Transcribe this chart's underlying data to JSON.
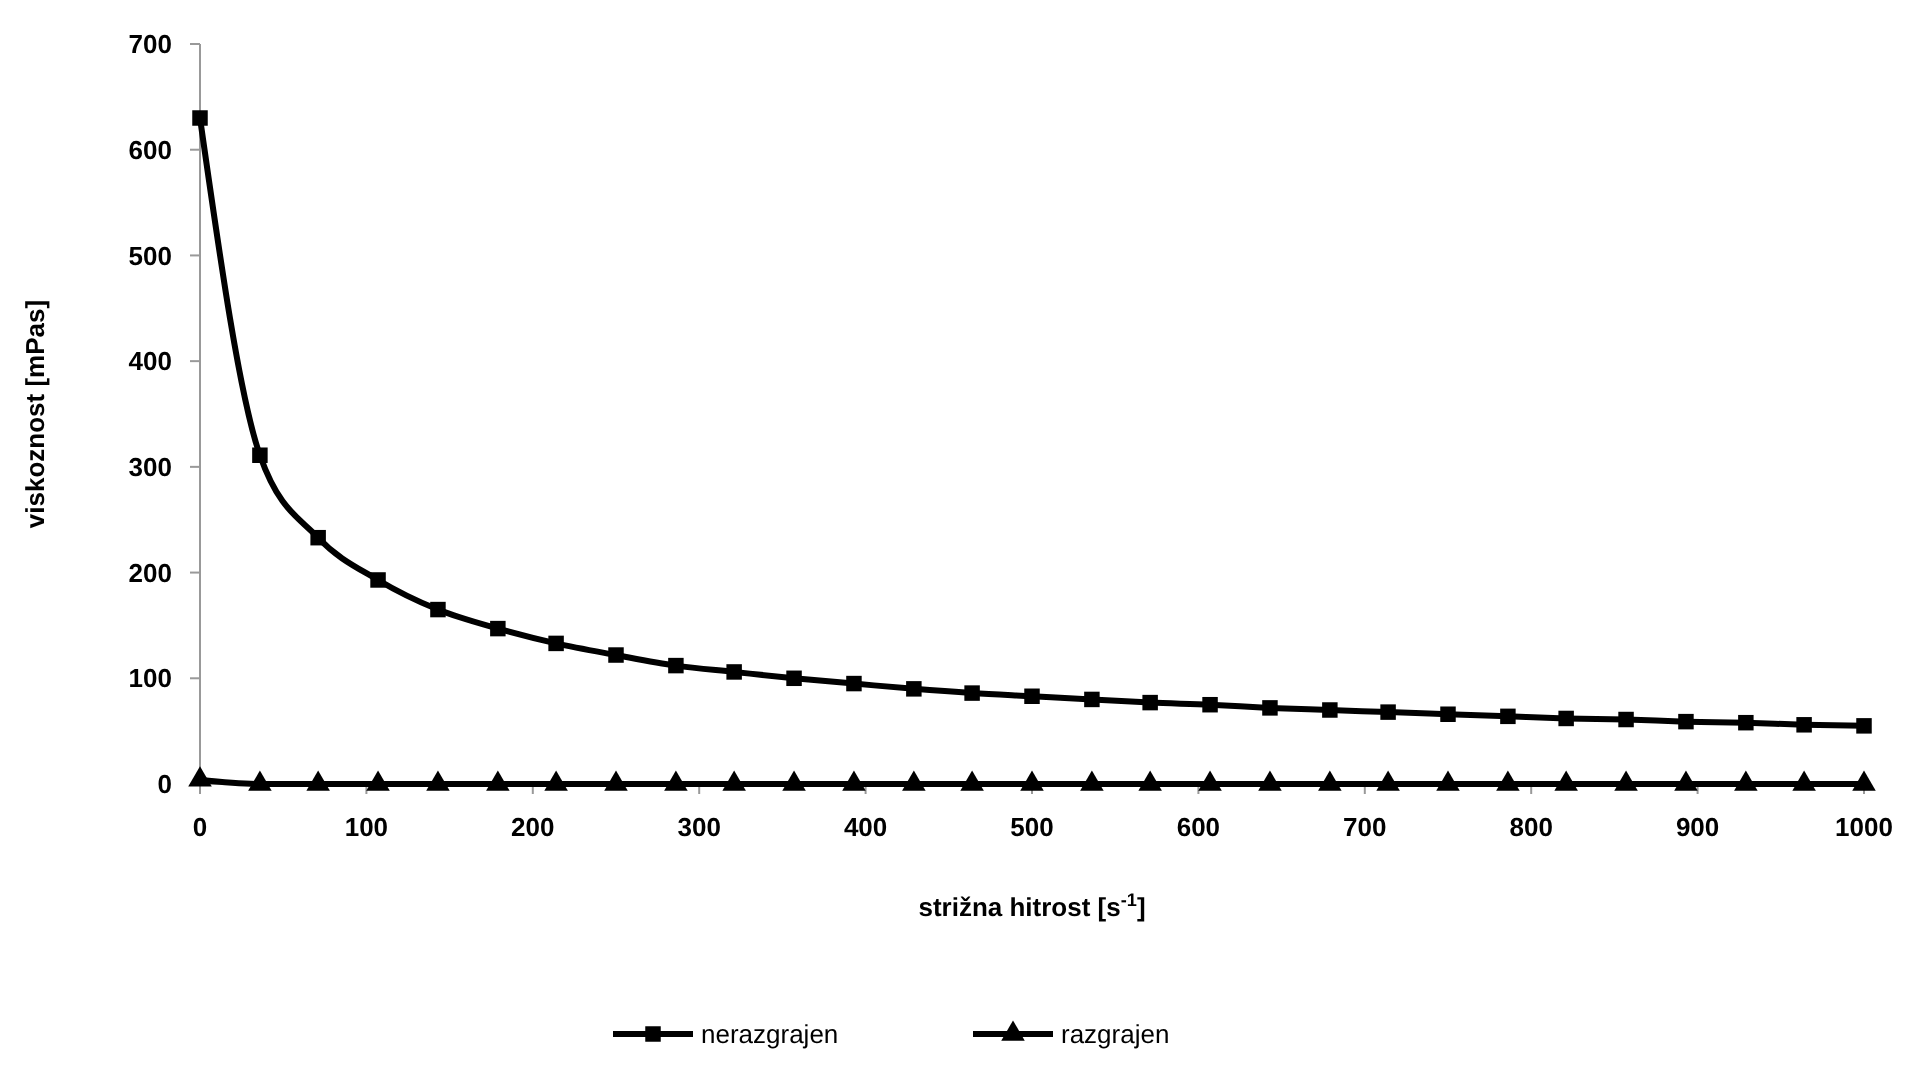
{
  "chart_data": {
    "type": "line",
    "xlabel": "strižna hitrost [s$^{-1}$]",
    "ylabel": "viskoznost [mPas]",
    "x": [
      0,
      36,
      71,
      107,
      143,
      179,
      214,
      250,
      286,
      321,
      357,
      393,
      429,
      464,
      500,
      536,
      571,
      607,
      643,
      679,
      714,
      750,
      786,
      821,
      857,
      893,
      929,
      964,
      1000
    ],
    "xlim": [
      0,
      1000
    ],
    "xticks": [
      0,
      100,
      200,
      300,
      400,
      500,
      600,
      700,
      800,
      900,
      1000
    ],
    "ylim": [
      0,
      700
    ],
    "yticks": [
      0,
      100,
      200,
      300,
      400,
      500,
      600,
      700
    ],
    "grid": false,
    "legend": "bottom",
    "line_style": "solid",
    "series": [
      {
        "name": "nerazgrajen",
        "color": "#000000",
        "marker": "square",
        "values": [
          630,
          311,
          233,
          193,
          165,
          147,
          133,
          122,
          112,
          106,
          100,
          95,
          90,
          86,
          83,
          80,
          77,
          75,
          72,
          70,
          68,
          66,
          64,
          62,
          61,
          59,
          58,
          56,
          55
        ]
      },
      {
        "name": "razgrajen",
        "color": "#000000",
        "marker": "triangle",
        "values": [
          4,
          0,
          0,
          0,
          0,
          0,
          0,
          0,
          0,
          0,
          0,
          0,
          0,
          0,
          0,
          0,
          0,
          0,
          0,
          0,
          0,
          0,
          0,
          0,
          0,
          0,
          0,
          0,
          0
        ]
      }
    ]
  }
}
